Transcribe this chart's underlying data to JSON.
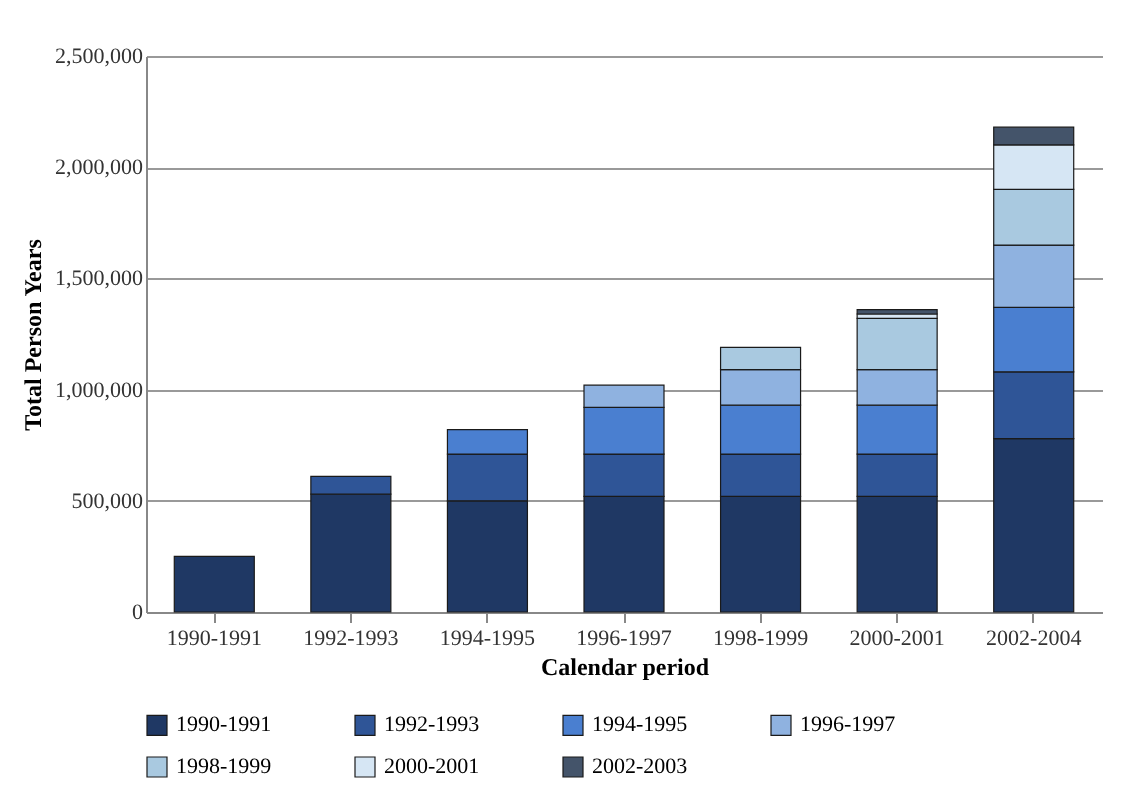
{
  "chart_data": {
    "type": "bar",
    "stacked": true,
    "xlabel": "Calendar period",
    "ylabel": "Total Person Years",
    "categories": [
      "1990-1991",
      "1992-1993",
      "1994-1995",
      "1996-1997",
      "1998-1999",
      "2000-2001",
      "2002-2004"
    ],
    "series": [
      {
        "name": "1990-1991",
        "color": "#1f3864",
        "values": [
          250000,
          530000,
          500000,
          520000,
          520000,
          520000,
          780000
        ]
      },
      {
        "name": "1992-1993",
        "color": "#2f5597",
        "values": [
          null,
          80000,
          210000,
          190000,
          190000,
          190000,
          300000
        ]
      },
      {
        "name": "1994-1995",
        "color": "#4a7fd0",
        "values": [
          null,
          null,
          110000,
          210000,
          220000,
          220000,
          290000
        ]
      },
      {
        "name": "1996-1997",
        "color": "#8fb2e0",
        "values": [
          null,
          null,
          null,
          100000,
          160000,
          160000,
          280000
        ]
      },
      {
        "name": "1998-1999",
        "color": "#a9c9e0",
        "values": [
          null,
          null,
          null,
          null,
          100000,
          230000,
          250000
        ]
      },
      {
        "name": "2000-2001",
        "color": "#d6e6f4",
        "values": [
          null,
          null,
          null,
          null,
          null,
          20000,
          200000
        ]
      },
      {
        "name": "2002-2003",
        "color": "#44546a",
        "values": [
          null,
          null,
          null,
          null,
          null,
          20000,
          80000
        ]
      }
    ],
    "ylim": [
      0,
      2500000
    ],
    "yticks": [
      0,
      {
        "value": 500000,
        "label": "500,000"
      },
      {
        "value": 1000000,
        "label": "1,000,000"
      },
      {
        "value": 1500000,
        "label": "1,500,000"
      },
      {
        "value": 2000000,
        "label": "2,000,000"
      },
      {
        "value": 2500000,
        "label": "2,500,000"
      }
    ],
    "grid": "y",
    "legend": "bottom"
  }
}
